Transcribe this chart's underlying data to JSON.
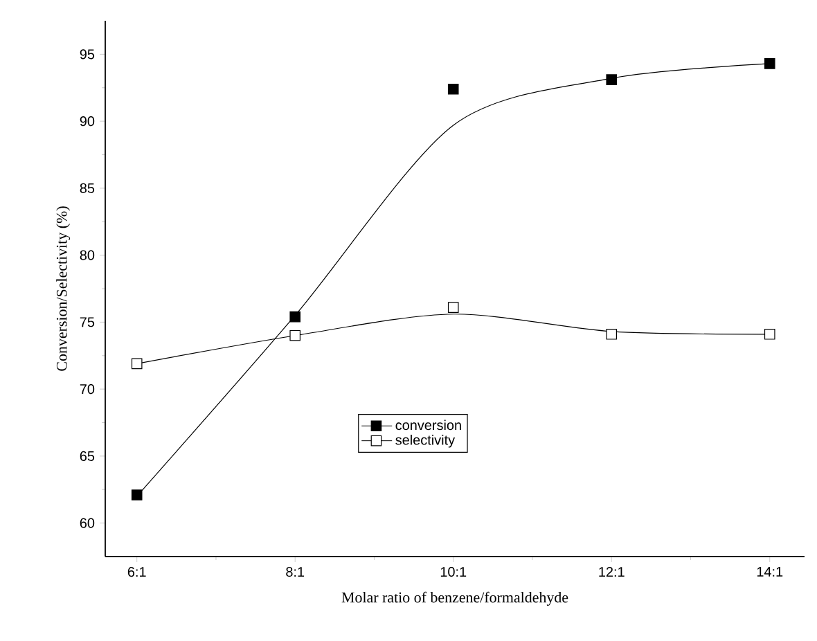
{
  "chart_data": {
    "type": "scatter",
    "xlabel": "Molar ratio of benzene/formaldehyde",
    "ylabel": "Conversion/Selectivity (%)",
    "categories": [
      "6:1",
      "8:1",
      "10:1",
      "12:1",
      "14:1"
    ],
    "ylim": [
      57.5,
      97.5
    ],
    "yticks": [
      60,
      65,
      70,
      75,
      80,
      85,
      90,
      95
    ],
    "marker": "square",
    "legend": "center",
    "grid": false,
    "series": [
      {
        "name": "conversion",
        "color": "#000000",
        "values": [
          62.1,
          75.4,
          92.4,
          93.1,
          94.3
        ]
      },
      {
        "name": "selectivity",
        "color": "#ffffff",
        "values": [
          71.9,
          74.0,
          76.1,
          74.1,
          74.1
        ]
      },
      {
        "type": "line",
        "marker": "none",
        "color": "#000000",
        "values": [
          62.0,
          75.5,
          89.7,
          93.2,
          94.3
        ]
      },
      {
        "type": "line",
        "marker": "none",
        "color": "#000000",
        "values": [
          71.9,
          74.0,
          75.6,
          74.3,
          74.1
        ]
      }
    ]
  }
}
